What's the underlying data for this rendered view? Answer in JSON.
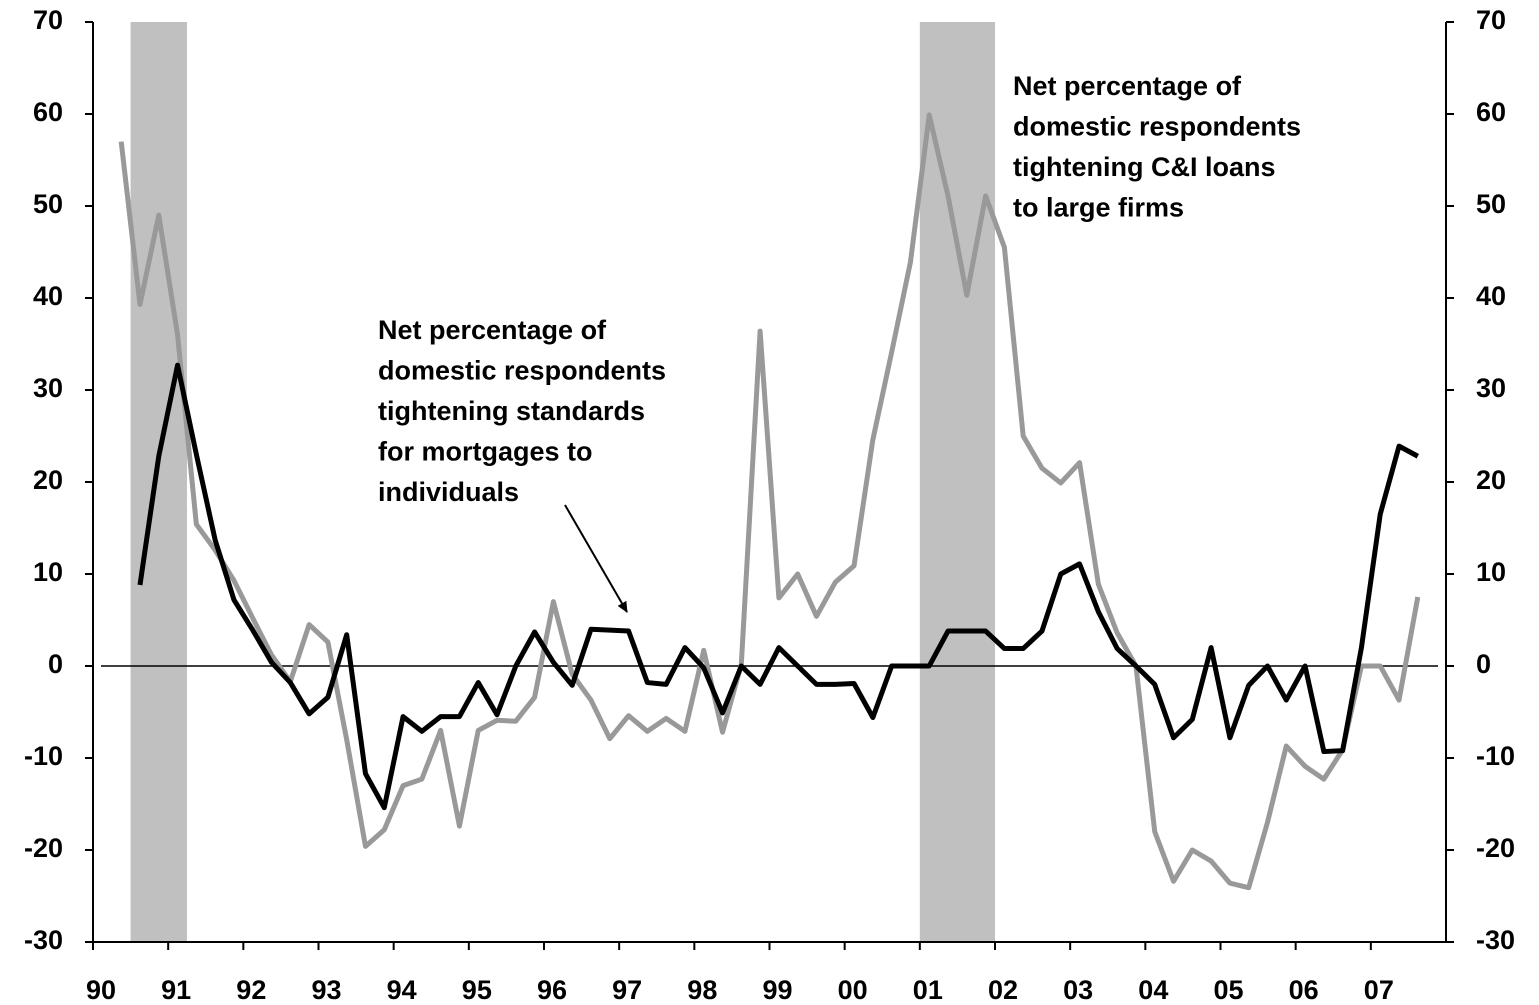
{
  "chart_data": {
    "type": "line",
    "x": [
      1990.375,
      1990.625,
      1990.875,
      1991.125,
      1991.375,
      1991.625,
      1991.875,
      1992.125,
      1992.375,
      1992.625,
      1992.875,
      1993.125,
      1993.375,
      1993.625,
      1993.875,
      1994.125,
      1994.375,
      1994.625,
      1994.875,
      1995.125,
      1995.375,
      1995.625,
      1995.875,
      1996.125,
      1996.375,
      1996.625,
      1996.875,
      1997.125,
      1997.375,
      1997.625,
      1997.875,
      1998.125,
      1998.375,
      1998.625,
      1998.875,
      1999.125,
      1999.375,
      1999.625,
      1999.875,
      2000.125,
      2000.375,
      2000.625,
      2000.875,
      2001.125,
      2001.375,
      2001.625,
      2001.875,
      2002.125,
      2002.375,
      2002.625,
      2002.875,
      2003.125,
      2003.375,
      2003.625,
      2003.875,
      2004.125,
      2004.375,
      2004.625,
      2004.875,
      2005.125,
      2005.375,
      2005.625,
      2005.875,
      2006.125,
      2006.375,
      2006.625,
      2006.875,
      2007.125,
      2007.375,
      2007.625
    ],
    "series": [
      {
        "name": "Net percentage of domestic respondents tightening C&I loans to large firms",
        "color": "#999999",
        "values": [
          57,
          39.3,
          49,
          36,
          15.4,
          12.6,
          9.3,
          5.2,
          1.2,
          -1.7,
          4.5,
          2.6,
          -8,
          -19.6,
          -17.8,
          -13,
          -12.3,
          -7,
          -17.4,
          -7,
          -5.9,
          -6,
          -3.4,
          7,
          -0.9,
          -3.7,
          -7.9,
          -5.4,
          -7.1,
          -5.7,
          -7.1,
          1.7,
          -7.2,
          0.2,
          36.4,
          7.4,
          10,
          5.4,
          9.1,
          10.9,
          24.6,
          34.1,
          43.9,
          59.9,
          51.1,
          40.3,
          51.1,
          45.5,
          25,
          21.5,
          19.9,
          22.1,
          8.9,
          3.6,
          0,
          -18,
          -23.4,
          -20,
          -21.2,
          -23.6,
          -24.1,
          -17,
          -8.7,
          -10.9,
          -12.3,
          -9.1,
          0,
          0,
          -3.7,
          7.5
        ]
      },
      {
        "name": "Net percentage of domestic respondents tightening standards for mortgages to individuals",
        "color": "#000000",
        "values": [
          null,
          8.8,
          22.8,
          32.7,
          23,
          13.7,
          7.2,
          3.9,
          0.4,
          -1.8,
          -5.2,
          -3.4,
          3.4,
          -11.7,
          -15.4,
          -5.5,
          -7.1,
          -5.5,
          -5.5,
          -1.8,
          -5.3,
          0,
          3.7,
          0.4,
          -2.1,
          4,
          3.9,
          3.8,
          -1.8,
          -2,
          2,
          -0.2,
          -5.1,
          0,
          -2,
          2,
          0,
          -2,
          -2,
          -1.9,
          -5.6,
          0,
          0,
          0,
          3.8,
          3.8,
          3.8,
          1.9,
          1.9,
          3.8,
          10,
          11.1,
          5.9,
          1.9,
          0,
          -2,
          -7.8,
          -5.8,
          2,
          -7.8,
          -2.1,
          0,
          -3.7,
          0,
          -9.3,
          -9.2,
          2,
          16.5,
          23.9,
          22.8
        ]
      }
    ],
    "shaded_regions": [
      [
        1990.5,
        1991.25
      ],
      [
        2001,
        2002
      ]
    ],
    "shade_color": "#c0c0c0",
    "annotations": [
      {
        "lines": [
          "Net percentage of",
          "domestic respondents",
          "tightening C&I loans",
          "to large firms"
        ]
      },
      {
        "lines": [
          "Net percentage of",
          "domestic respondents",
          "tightening standards",
          "for mortgages to",
          "individuals"
        ]
      }
    ],
    "xlim": [
      1990,
      2008
    ],
    "xticks": [
      {
        "value": 1990,
        "label": "90"
      },
      {
        "value": 1991,
        "label": "91"
      },
      {
        "value": 1992,
        "label": "92"
      },
      {
        "value": 1993,
        "label": "93"
      },
      {
        "value": 1994,
        "label": "94"
      },
      {
        "value": 1995,
        "label": "95"
      },
      {
        "value": 1996,
        "label": "96"
      },
      {
        "value": 1997,
        "label": "97"
      },
      {
        "value": 1998,
        "label": "98"
      },
      {
        "value": 1999,
        "label": "99"
      },
      {
        "value": 2000,
        "label": "00"
      },
      {
        "value": 2001,
        "label": "01"
      },
      {
        "value": 2002,
        "label": "02"
      },
      {
        "value": 2003,
        "label": "03"
      },
      {
        "value": 2004,
        "label": "04"
      },
      {
        "value": 2005,
        "label": "05"
      },
      {
        "value": 2006,
        "label": "06"
      },
      {
        "value": 2007,
        "label": "07"
      }
    ],
    "ylim": [
      -30,
      70
    ],
    "yticks": [
      -30,
      -20,
      -10,
      0,
      10,
      20,
      30,
      40,
      50,
      60,
      70
    ],
    "y2lim": [
      -30,
      70
    ],
    "y2ticks": [
      -30,
      -20,
      -10,
      0,
      10,
      20,
      30,
      40,
      50,
      60,
      70
    ]
  }
}
